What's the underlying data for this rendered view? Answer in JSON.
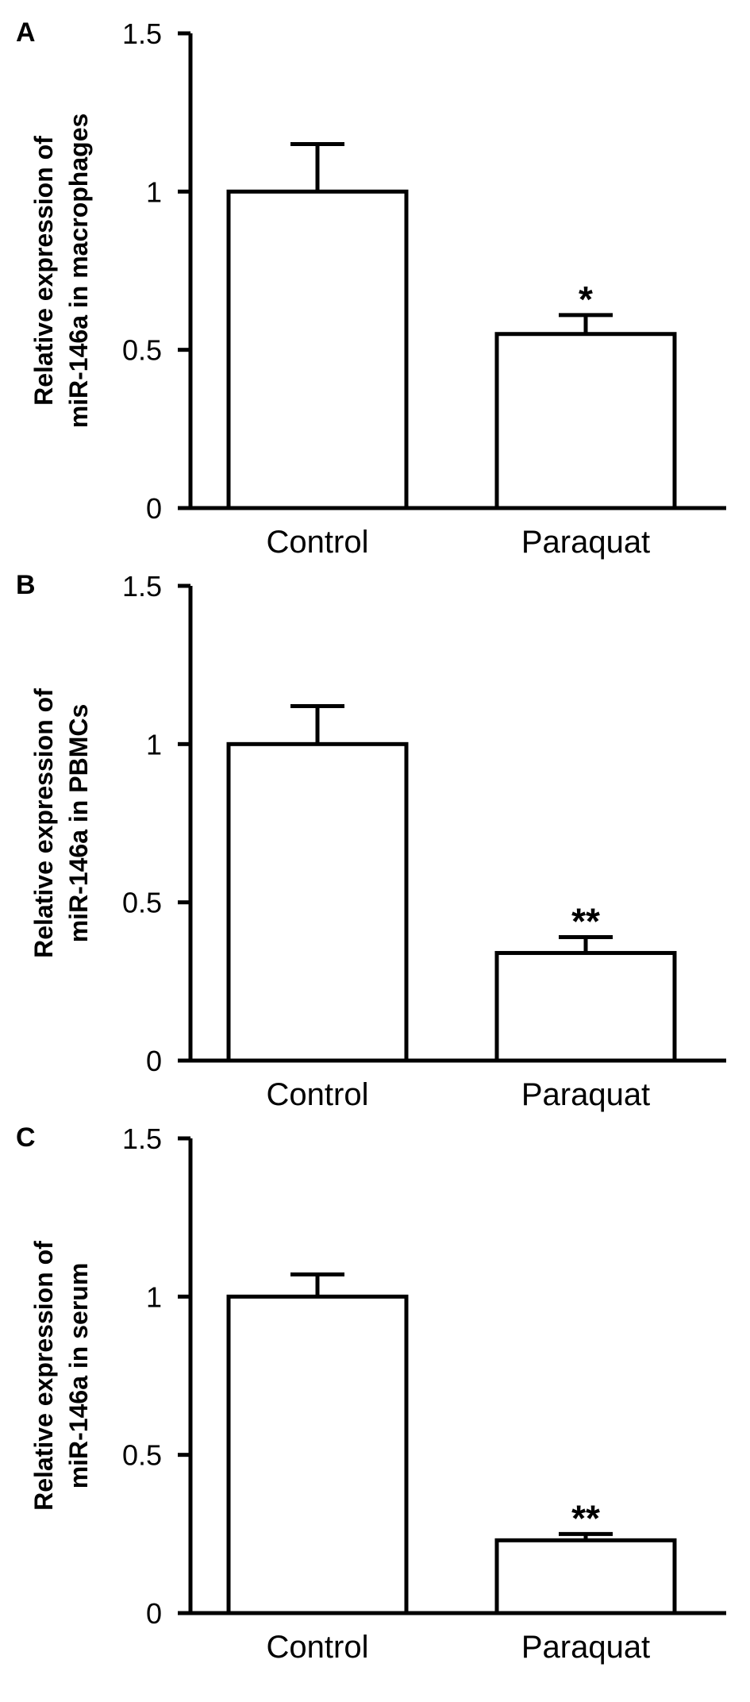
{
  "chart_data": [
    {
      "type": "bar",
      "panel": "A",
      "categories": [
        "Control",
        "Paraquat"
      ],
      "values": [
        1.0,
        0.55
      ],
      "errors": [
        0.15,
        0.06
      ],
      "significance": [
        "",
        "*"
      ],
      "ylabel_lines": [
        "Relative expression of",
        "miR-146a in macrophages"
      ],
      "ylim": [
        0,
        1.5
      ],
      "yticks": [
        0,
        0.5,
        1,
        1.5
      ],
      "ytick_labels": [
        "0",
        "0.5",
        "1",
        "1.5"
      ],
      "grid": false
    },
    {
      "type": "bar",
      "panel": "B",
      "categories": [
        "Control",
        "Paraquat"
      ],
      "values": [
        1.0,
        0.34
      ],
      "errors": [
        0.12,
        0.05
      ],
      "significance": [
        "",
        "**"
      ],
      "ylabel_lines": [
        "Relative expression of",
        "miR-146a in PBMCs"
      ],
      "ylim": [
        0,
        1.5
      ],
      "yticks": [
        0,
        0.5,
        1,
        1.5
      ],
      "ytick_labels": [
        "0",
        "0.5",
        "1",
        "1.5"
      ],
      "grid": false
    },
    {
      "type": "bar",
      "panel": "C",
      "categories": [
        "Control",
        "Paraquat"
      ],
      "values": [
        1.0,
        0.23
      ],
      "errors": [
        0.07,
        0.02
      ],
      "significance": [
        "",
        "**"
      ],
      "ylabel_lines": [
        "Relative expression of",
        "miR-146a in serum"
      ],
      "ylim": [
        0,
        1.5
      ],
      "yticks": [
        0,
        0.5,
        1,
        1.5
      ],
      "ytick_labels": [
        "0",
        "0.5",
        "1",
        "1.5"
      ],
      "grid": false
    }
  ]
}
